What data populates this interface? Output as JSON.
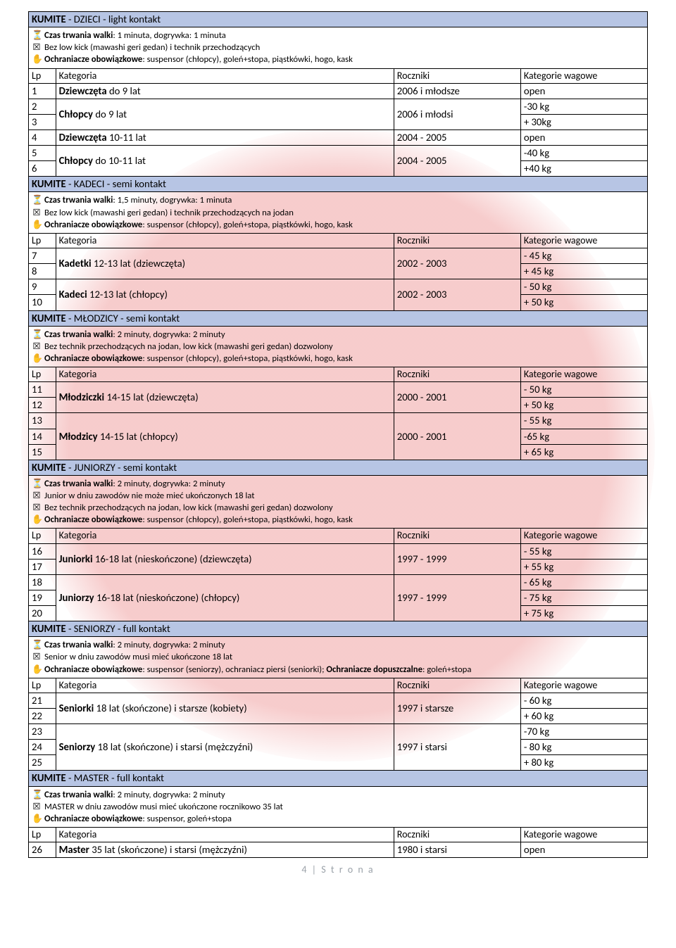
{
  "clock": "⏳",
  "box": "☒",
  "hand": "✋",
  "col": {
    "lp": "Lp",
    "kat": "Kategoria",
    "rok": "Roczniki",
    "wag": "Kategorie wagowe"
  },
  "footer": "4 | S t r o n a",
  "s1": {
    "title": [
      "KUMITE",
      " - DZIECI - light kontakt"
    ],
    "n1": [
      "Czas trwania walki",
      ": 1 minuta, dogrywka: 1 minuta"
    ],
    "n2": "Bez low kick (mawashi geri gedan) i technik przechodzących",
    "n3": [
      "Ochraniacze obowiązkowe",
      ": suspensor (chłopcy), goleń+stopa, piąstkówki, hogo, kask"
    ],
    "rows": [
      {
        "lp": "1",
        "katB": "Dziewczęta",
        "kat": "  do 9 lat",
        "rok": "2006 i młodsze",
        "wag": "open"
      },
      {
        "lp": "2",
        "span": 2,
        "katB": "Chłopcy",
        "kat": " do 9 lat",
        "rok": "2006 i młodsi",
        "wag": "-30 kg"
      },
      {
        "lp": "3",
        "wag": "+ 30kg"
      },
      {
        "lp": "4",
        "katB": "Dziewczęta",
        "kat": "  10-11 lat",
        "rok": "2004 - 2005",
        "wag": "open"
      },
      {
        "lp": "5",
        "span": 2,
        "katB": "Chłopcy",
        "kat": " do 10-11 lat",
        "rok": "2004 - 2005",
        "wag": "-40 kg"
      },
      {
        "lp": "6",
        "wag": "+40 kg"
      }
    ]
  },
  "s2": {
    "title": [
      "KUMITE",
      " - KADECI - semi kontakt"
    ],
    "n1": [
      "Czas trwania walki",
      ": 1,5 minuty, dogrywka: 1 minuta"
    ],
    "n2": "Bez low kick (mawashi geri gedan) i technik przechodzących na jodan",
    "n3": [
      "Ochraniacze obowiązkowe",
      ": suspensor (chłopcy), goleń+stopa, piąstkówki, hogo, kask"
    ],
    "rows": [
      {
        "lp": "7",
        "span": 2,
        "katB": "Kadetki",
        "kat": " 12-13 lat (dziewczęta)",
        "rok": "2002 - 2003",
        "wag": "- 45 kg"
      },
      {
        "lp": "8",
        "wag": "+ 45 kg"
      },
      {
        "lp": "9",
        "span": 2,
        "katB": "Kadeci",
        "kat": " 12-13 lat (chłopcy)",
        "rok": "2002 - 2003",
        "wag": "- 50 kg"
      },
      {
        "lp": "10",
        "wag": "+ 50 kg"
      }
    ]
  },
  "s3": {
    "title": [
      "KUMITE",
      " - MŁODZICY - semi kontakt"
    ],
    "n1": [
      "Czas trwania walki",
      ": 2 minuty, dogrywka: 2 minuty"
    ],
    "n2": "Bez technik przechodzących na jodan, low kick (mawashi geri gedan) dozwolony",
    "n3": [
      "Ochraniacze obowiązkowe",
      ": suspensor (chłopcy), goleń+stopa, piąstkówki, hogo, kask"
    ],
    "rows": [
      {
        "lp": "11",
        "span": 2,
        "katB": "Młodziczki",
        "kat": "  14-15 lat (dziewczęta)",
        "rok": "2000 - 2001",
        "wag": "- 50 kg"
      },
      {
        "lp": "12",
        "wag": "+ 50 kg"
      },
      {
        "lp": "13",
        "span": 3,
        "katB": "Młodzicy",
        "kat": "  14-15 lat (chłopcy)",
        "rok": "2000 - 2001",
        "wag": "- 55 kg"
      },
      {
        "lp": "14",
        "wag": "-65 kg"
      },
      {
        "lp": "15",
        "wag": "+ 65 kg"
      }
    ]
  },
  "s4": {
    "title": [
      "KUMITE",
      " - JUNIORZY - semi kontakt"
    ],
    "n1": [
      "Czas trwania walki",
      ": 2 minuty, dogrywka: 2 minuty"
    ],
    "n2a": "Junior w dniu zawodów nie może mieć ukończonych 18 lat",
    "n2b": "Bez technik przechodzących na jodan, low kick (mawashi geri gedan) dozwolony",
    "n3": [
      "Ochraniacze obowiązkowe",
      ": suspensor (chłopcy), goleń+stopa, piąstkówki, hogo, kask"
    ],
    "rows": [
      {
        "lp": "16",
        "span": 2,
        "katB": "Juniorki",
        "kat": "  16-18 lat (nieskończone) (dziewczęta)",
        "rok": "1997 - 1999",
        "wag": "- 55 kg"
      },
      {
        "lp": "17",
        "wag": "+ 55 kg"
      },
      {
        "lp": "18",
        "span": 3,
        "katB": "Juniorzy",
        "kat": "  16-18 lat (nieskończone) (chłopcy)",
        "rok": "1997 - 1999",
        "wag": "- 65 kg"
      },
      {
        "lp": "19",
        "wag": "- 75 kg"
      },
      {
        "lp": "20",
        "wag": "+ 75 kg"
      }
    ]
  },
  "s5": {
    "title": [
      "KUMITE",
      " - SENIORZY - full kontakt"
    ],
    "n1": [
      "Czas trwania walki",
      ": 2 minuty, dogrywka: 2 minuty"
    ],
    "n2": "Senior w dniu zawodów musi mieć ukończone 18 lat",
    "n3": [
      "Ochraniacze obowiązkowe",
      ": suspensor (seniorzy), ochraniacz piersi (seniorki); ",
      "Ochraniacze dopuszczalne",
      ": goleń+stopa"
    ],
    "rows": [
      {
        "lp": "21",
        "span": 2,
        "katB": "Seniorki",
        "kat": " 18 lat (skończone) i starsze (kobiety)",
        "rok": "1997 i starsze",
        "wag": "- 60 kg"
      },
      {
        "lp": "22",
        "wag": "+ 60 kg"
      },
      {
        "lp": "23",
        "span": 3,
        "katB": "Seniorzy",
        "kat": " 18 lat (skończone) i starsi (mężczyźni)",
        "rok": "1997 i starsi",
        "wag": "-70 kg"
      },
      {
        "lp": "24",
        "wag": "- 80 kg"
      },
      {
        "lp": "25",
        "wag": "+ 80 kg"
      }
    ]
  },
  "s6": {
    "title": [
      "KUMITE",
      " - MASTER - full kontakt"
    ],
    "n1": [
      "Czas trwania walki",
      ": 2 minuty, dogrywka: 2 minuty"
    ],
    "n2": "MASTER w dniu zawodów musi mieć ukończone rocznikowo 35 lat",
    "n3": [
      "Ochraniacze obowiązkowe",
      ": suspensor, goleń+stopa"
    ],
    "rows": [
      {
        "lp": "26",
        "katB": "Master",
        "kat": " 35 lat (skończone) i starsi (mężczyźni)",
        "rok": "1980 i starsi",
        "wag": "open"
      }
    ]
  }
}
